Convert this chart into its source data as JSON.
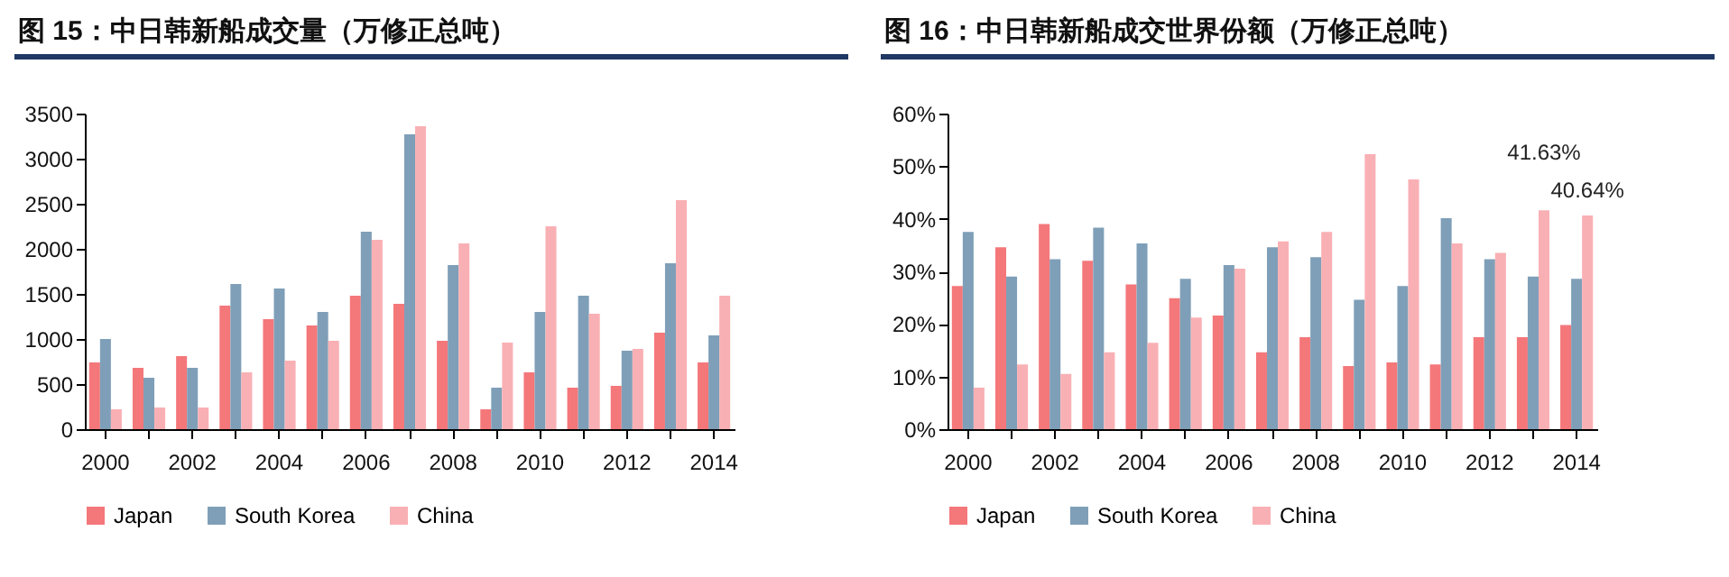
{
  "chart_data": [
    {
      "type": "bar",
      "title": "图 15：中日韩新船成交量（万修正总吨）",
      "categories": [
        "2000",
        null,
        "2002",
        null,
        "2004",
        null,
        "2006",
        null,
        "2008",
        null,
        "2010",
        null,
        "2012",
        null,
        "2014"
      ],
      "ylim": [
        0,
        3500
      ],
      "yticks": [
        0,
        500,
        1000,
        1500,
        2000,
        2500,
        3000,
        3500
      ],
      "grid": false,
      "legend": "bottom",
      "series": [
        {
          "name": "Japan",
          "color": "#f4777a",
          "values": [
            740,
            680,
            810,
            1370,
            1220,
            1150,
            1480,
            1390,
            980,
            220,
            630,
            460,
            480,
            1070,
            740
          ]
        },
        {
          "name": "South Korea",
          "color": "#7f9fb8",
          "values": [
            1000,
            570,
            680,
            1610,
            1560,
            1300,
            2190,
            3270,
            1820,
            460,
            1300,
            1480,
            870,
            1840,
            1040
          ]
        },
        {
          "name": "China",
          "color": "#f9b0b4",
          "values": [
            220,
            240,
            240,
            630,
            760,
            980,
            2100,
            3360,
            2060,
            960,
            2250,
            1280,
            890,
            2540,
            1480
          ]
        }
      ]
    },
    {
      "type": "bar",
      "title": "图 16：中日韩新船成交世界份额（万修正总吨）",
      "categories": [
        "2000",
        null,
        "2002",
        null,
        "2004",
        null,
        "2006",
        null,
        "2008",
        null,
        "2010",
        null,
        "2012",
        null,
        "2014"
      ],
      "ylim": [
        0,
        60
      ],
      "yticks": [
        {
          "value": 0,
          "label": "0%"
        },
        {
          "value": 10,
          "label": "10%"
        },
        {
          "value": 20,
          "label": "20%"
        },
        {
          "value": 30,
          "label": "30%"
        },
        {
          "value": 40,
          "label": "40%"
        },
        {
          "value": 50,
          "label": "50%"
        },
        {
          "value": 60,
          "label": "60%"
        }
      ],
      "grid": false,
      "legend": "bottom",
      "series": [
        {
          "name": "Japan",
          "color": "#f4777a",
          "values": [
            27.2,
            34.6,
            39.0,
            32.0,
            27.5,
            24.9,
            21.6,
            14.6,
            17.5,
            12.0,
            12.7,
            12.3,
            17.5,
            17.5,
            19.8
          ]
        },
        {
          "name": "South Korea",
          "color": "#7f9fb8",
          "values": [
            37.5,
            29.0,
            32.3,
            38.3,
            35.3,
            28.6,
            31.2,
            34.6,
            32.7,
            24.6,
            27.2,
            40.1,
            32.3,
            29.0,
            28.6
          ]
        },
        {
          "name": "China",
          "color": "#f9b0b4",
          "values": [
            7.9,
            12.3,
            10.5,
            14.6,
            16.4,
            21.2,
            30.5,
            35.7,
            37.5,
            52.3,
            47.5,
            35.3,
            33.5,
            41.63,
            40.64
          ],
          "value_labels": [
            null,
            null,
            null,
            null,
            null,
            null,
            null,
            null,
            null,
            null,
            null,
            null,
            null,
            "41.63%",
            "40.64%"
          ]
        }
      ]
    }
  ]
}
